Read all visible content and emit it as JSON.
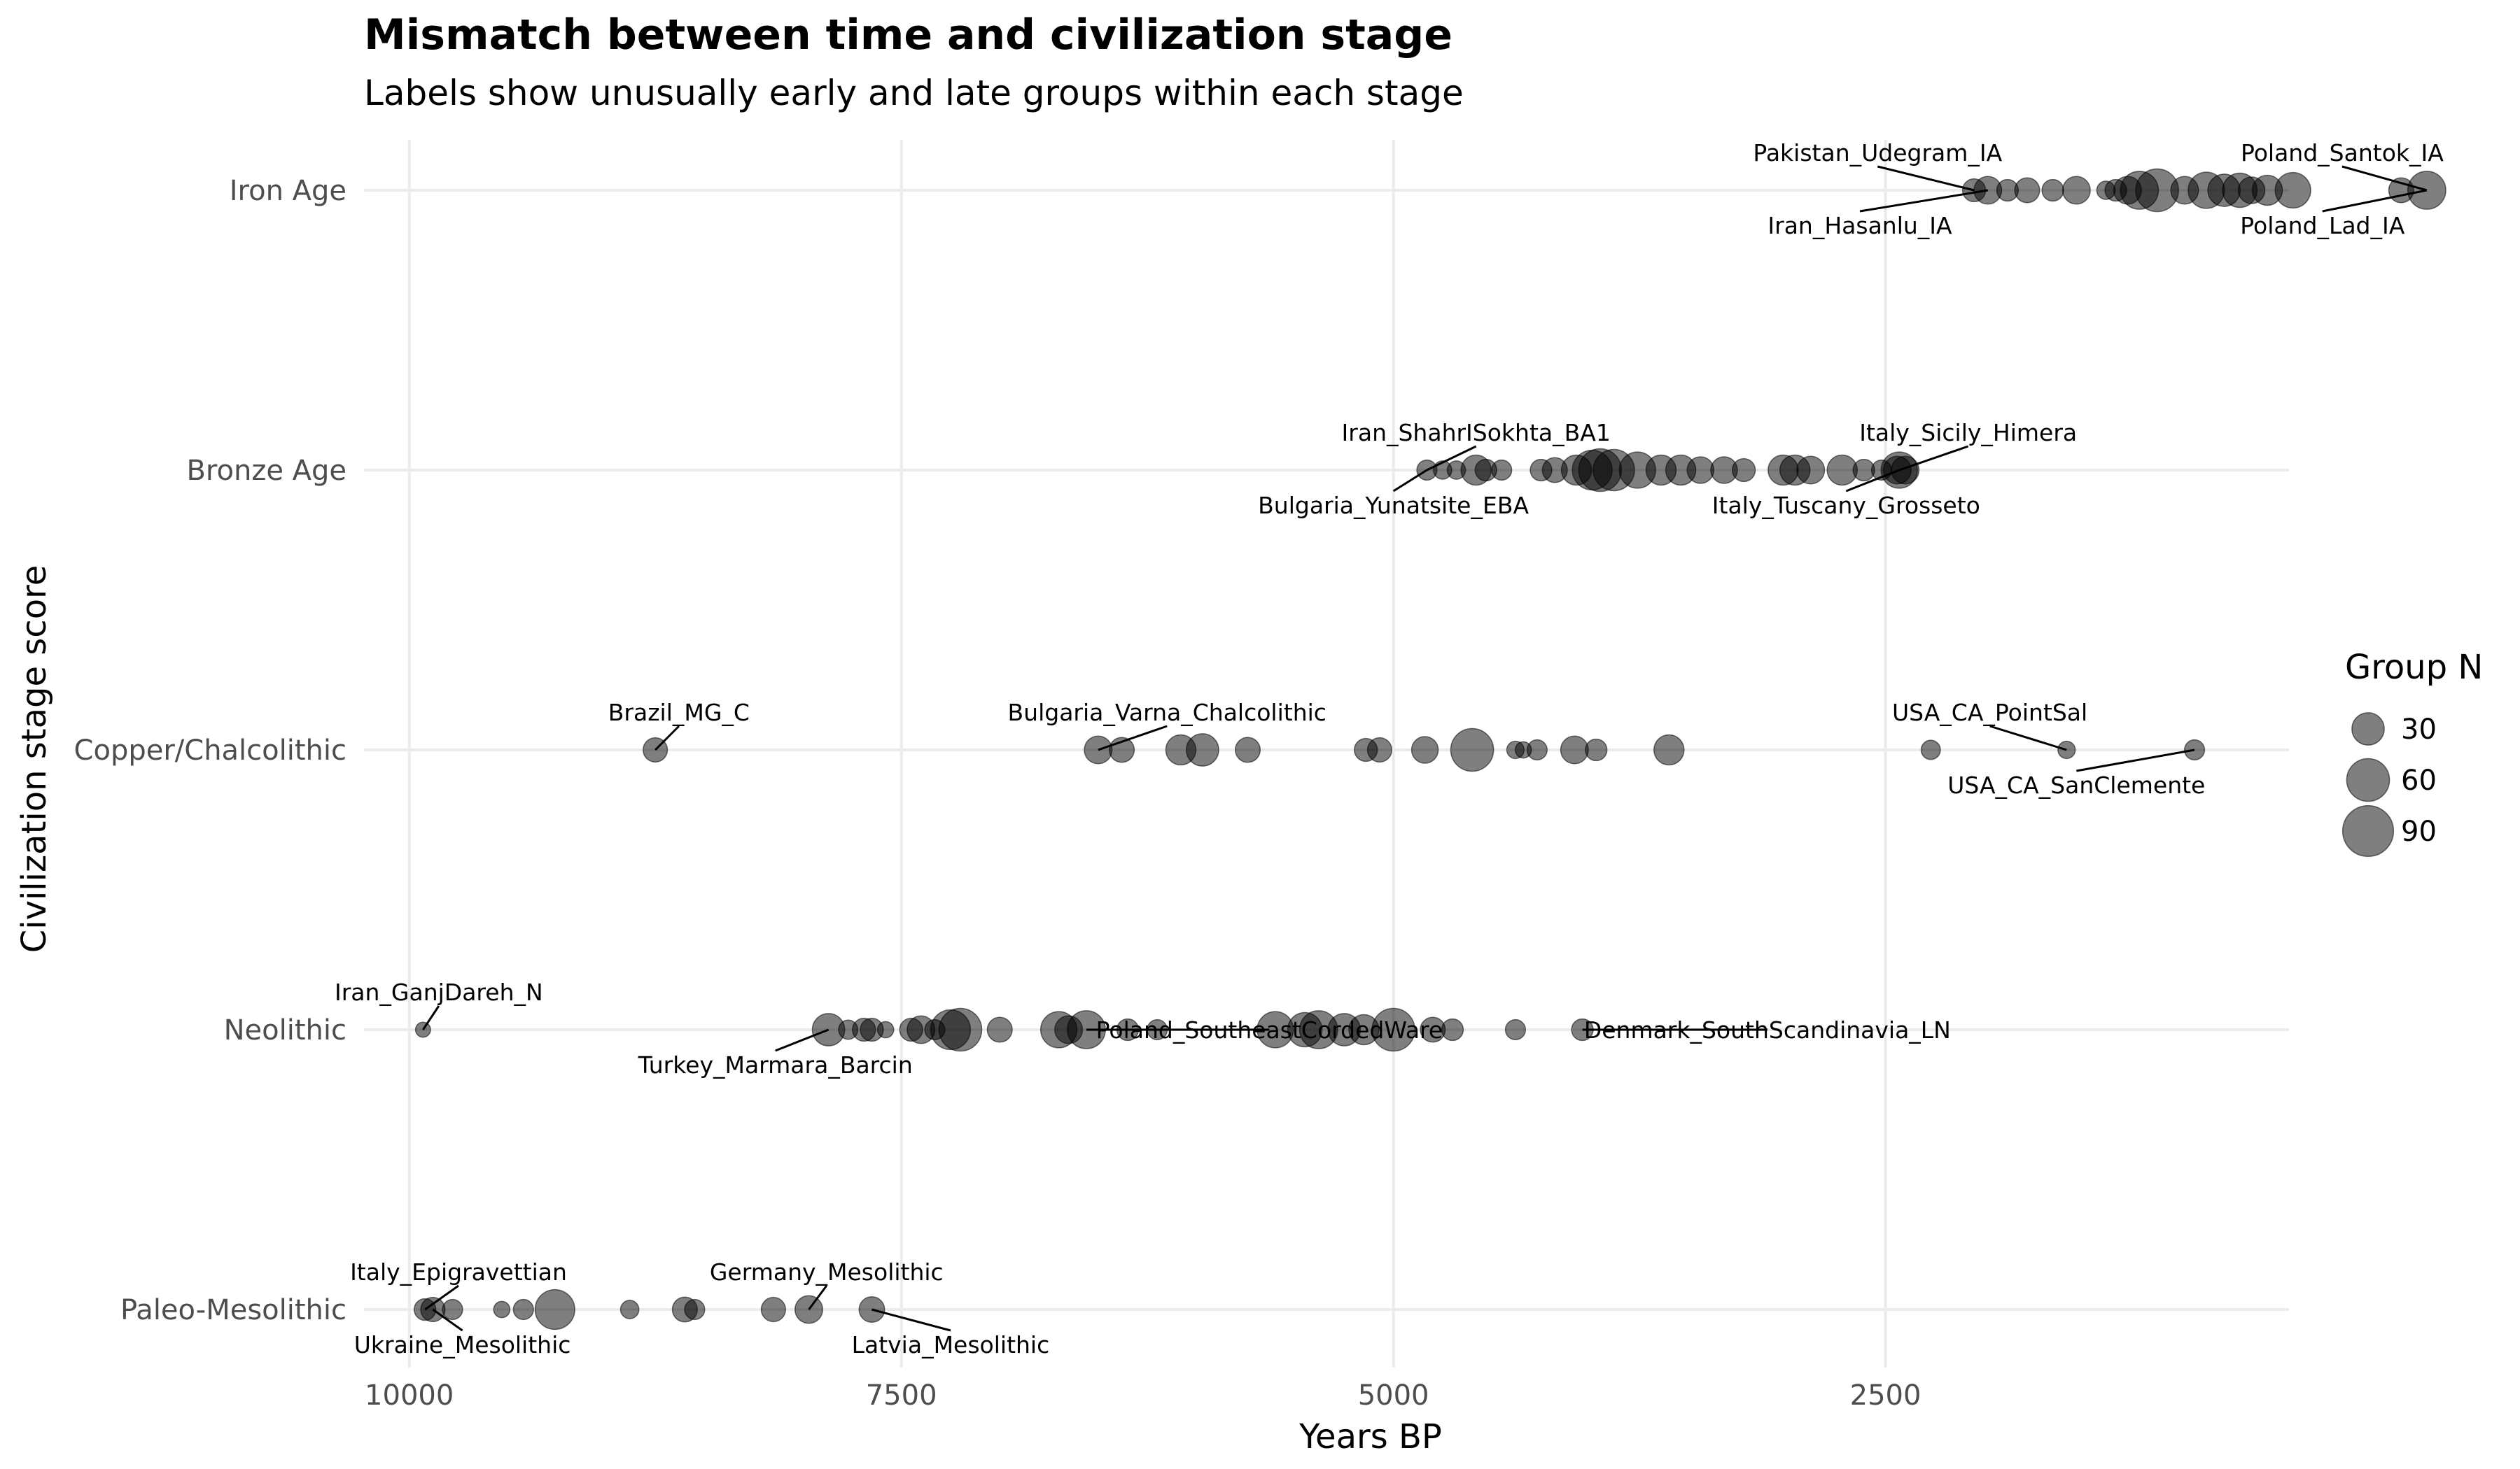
{
  "chart_data": {
    "type": "scatter",
    "title": "Mismatch between time and civilization stage",
    "subtitle": "Labels show unusually early and late groups within each stage",
    "xlabel": "Years BP",
    "ylabel": "Civilization stage score",
    "xlim": [
      10230,
      450
    ],
    "x_reversed": true,
    "x_ticks": [
      {
        "value": 10000,
        "label": "10000"
      },
      {
        "value": 7500,
        "label": "7500"
      },
      {
        "value": 5000,
        "label": "5000"
      },
      {
        "value": 2500,
        "label": "2500"
      }
    ],
    "y_levels": [
      {
        "value": 1,
        "label": "Paleo-Mesolithic"
      },
      {
        "value": 2,
        "label": "Neolithic"
      },
      {
        "value": 3,
        "label": "Copper/Chalcolithic"
      },
      {
        "value": 4,
        "label": "Bronze Age"
      },
      {
        "value": 5,
        "label": "Iron Age"
      }
    ],
    "size_legend": {
      "title": "Group N",
      "values": [
        30,
        60,
        90
      ]
    },
    "points": [
      {
        "x": 9920,
        "y": 1,
        "n": 10
      },
      {
        "x": 9880,
        "y": 1,
        "n": 14
      },
      {
        "x": 9780,
        "y": 1,
        "n": 8
      },
      {
        "x": 9530,
        "y": 1,
        "n": 4
      },
      {
        "x": 9420,
        "y": 1,
        "n": 8
      },
      {
        "x": 9260,
        "y": 1,
        "n": 50
      },
      {
        "x": 8880,
        "y": 1,
        "n": 6
      },
      {
        "x": 8600,
        "y": 1,
        "n": 15
      },
      {
        "x": 8550,
        "y": 1,
        "n": 8
      },
      {
        "x": 8150,
        "y": 1,
        "n": 14
      },
      {
        "x": 7970,
        "y": 1,
        "n": 20
      },
      {
        "x": 7650,
        "y": 1,
        "n": 16
      },
      {
        "x": 9930,
        "y": 2,
        "n": 3
      },
      {
        "x": 7870,
        "y": 2,
        "n": 30
      },
      {
        "x": 7770,
        "y": 2,
        "n": 7
      },
      {
        "x": 7690,
        "y": 2,
        "n": 12
      },
      {
        "x": 7650,
        "y": 2,
        "n": 12
      },
      {
        "x": 7580,
        "y": 2,
        "n": 4
      },
      {
        "x": 7450,
        "y": 2,
        "n": 12
      },
      {
        "x": 7400,
        "y": 2,
        "n": 20
      },
      {
        "x": 7330,
        "y": 2,
        "n": 8
      },
      {
        "x": 7250,
        "y": 2,
        "n": 50
      },
      {
        "x": 7200,
        "y": 2,
        "n": 60
      },
      {
        "x": 7000,
        "y": 2,
        "n": 15
      },
      {
        "x": 6700,
        "y": 2,
        "n": 40
      },
      {
        "x": 6650,
        "y": 2,
        "n": 20
      },
      {
        "x": 6560,
        "y": 2,
        "n": 45
      },
      {
        "x": 6350,
        "y": 2,
        "n": 10
      },
      {
        "x": 6200,
        "y": 2,
        "n": 8
      },
      {
        "x": 5600,
        "y": 2,
        "n": 40
      },
      {
        "x": 5450,
        "y": 2,
        "n": 35
      },
      {
        "x": 5380,
        "y": 2,
        "n": 45
      },
      {
        "x": 5250,
        "y": 2,
        "n": 30
      },
      {
        "x": 5150,
        "y": 2,
        "n": 25
      },
      {
        "x": 5000,
        "y": 2,
        "n": 60
      },
      {
        "x": 4800,
        "y": 2,
        "n": 15
      },
      {
        "x": 4700,
        "y": 2,
        "n": 10
      },
      {
        "x": 4380,
        "y": 2,
        "n": 8
      },
      {
        "x": 4040,
        "y": 2,
        "n": 10
      },
      {
        "x": 8750,
        "y": 3,
        "n": 14
      },
      {
        "x": 6500,
        "y": 3,
        "n": 20
      },
      {
        "x": 6380,
        "y": 3,
        "n": 15
      },
      {
        "x": 6080,
        "y": 3,
        "n": 25
      },
      {
        "x": 5970,
        "y": 3,
        "n": 30
      },
      {
        "x": 5740,
        "y": 3,
        "n": 15
      },
      {
        "x": 5140,
        "y": 3,
        "n": 12
      },
      {
        "x": 5070,
        "y": 3,
        "n": 14
      },
      {
        "x": 4840,
        "y": 3,
        "n": 18
      },
      {
        "x": 4600,
        "y": 3,
        "n": 60
      },
      {
        "x": 4380,
        "y": 3,
        "n": 5
      },
      {
        "x": 4340,
        "y": 3,
        "n": 4
      },
      {
        "x": 4270,
        "y": 3,
        "n": 8
      },
      {
        "x": 4080,
        "y": 3,
        "n": 20
      },
      {
        "x": 3970,
        "y": 3,
        "n": 10
      },
      {
        "x": 3600,
        "y": 3,
        "n": 25
      },
      {
        "x": 2270,
        "y": 3,
        "n": 7
      },
      {
        "x": 1580,
        "y": 3,
        "n": 5
      },
      {
        "x": 930,
        "y": 3,
        "n": 8
      },
      {
        "x": 4830,
        "y": 4,
        "n": 8
      },
      {
        "x": 4750,
        "y": 4,
        "n": 6
      },
      {
        "x": 4680,
        "y": 4,
        "n": 6
      },
      {
        "x": 4580,
        "y": 4,
        "n": 25
      },
      {
        "x": 4530,
        "y": 4,
        "n": 10
      },
      {
        "x": 4450,
        "y": 4,
        "n": 8
      },
      {
        "x": 4250,
        "y": 4,
        "n": 10
      },
      {
        "x": 4180,
        "y": 4,
        "n": 15
      },
      {
        "x": 4070,
        "y": 4,
        "n": 25
      },
      {
        "x": 3990,
        "y": 4,
        "n": 50
      },
      {
        "x": 3950,
        "y": 4,
        "n": 60
      },
      {
        "x": 3880,
        "y": 4,
        "n": 55
      },
      {
        "x": 3760,
        "y": 4,
        "n": 40
      },
      {
        "x": 3640,
        "y": 4,
        "n": 25
      },
      {
        "x": 3540,
        "y": 4,
        "n": 25
      },
      {
        "x": 3440,
        "y": 4,
        "n": 18
      },
      {
        "x": 3320,
        "y": 4,
        "n": 18
      },
      {
        "x": 3220,
        "y": 4,
        "n": 12
      },
      {
        "x": 3020,
        "y": 4,
        "n": 25
      },
      {
        "x": 2960,
        "y": 4,
        "n": 25
      },
      {
        "x": 2880,
        "y": 4,
        "n": 20
      },
      {
        "x": 2720,
        "y": 4,
        "n": 25
      },
      {
        "x": 2610,
        "y": 4,
        "n": 10
      },
      {
        "x": 2520,
        "y": 4,
        "n": 8
      },
      {
        "x": 2440,
        "y": 4,
        "n": 20
      },
      {
        "x": 2400,
        "y": 4,
        "n": 20
      },
      {
        "x": 2430,
        "y": 4,
        "n": 40
      },
      {
        "x": 2050,
        "y": 5,
        "n": 12
      },
      {
        "x": 1980,
        "y": 5,
        "n": 20
      },
      {
        "x": 1880,
        "y": 5,
        "n": 10
      },
      {
        "x": 1780,
        "y": 5,
        "n": 15
      },
      {
        "x": 1650,
        "y": 5,
        "n": 10
      },
      {
        "x": 1530,
        "y": 5,
        "n": 20
      },
      {
        "x": 1380,
        "y": 5,
        "n": 6
      },
      {
        "x": 1330,
        "y": 5,
        "n": 10
      },
      {
        "x": 1270,
        "y": 5,
        "n": 20
      },
      {
        "x": 1210,
        "y": 5,
        "n": 45
      },
      {
        "x": 1120,
        "y": 5,
        "n": 60
      },
      {
        "x": 980,
        "y": 5,
        "n": 20
      },
      {
        "x": 870,
        "y": 5,
        "n": 40
      },
      {
        "x": 780,
        "y": 5,
        "n": 30
      },
      {
        "x": 700,
        "y": 5,
        "n": 35
      },
      {
        "x": 640,
        "y": 5,
        "n": 18
      },
      {
        "x": 560,
        "y": 5,
        "n": 25
      },
      {
        "x": 430,
        "y": 5,
        "n": 38
      },
      {
        "x": -120,
        "y": 5,
        "n": 15
      },
      {
        "x": -250,
        "y": 5,
        "n": 45
      }
    ],
    "labels": [
      {
        "text": "Italy_Epigravettian",
        "x": 9920,
        "y": 1,
        "lx": 9750,
        "ly": 1.08
      },
      {
        "text": "Ukraine_Mesolithic",
        "x": 9880,
        "y": 1,
        "lx": 9730,
        "ly": 0.92
      },
      {
        "text": "Germany_Mesolithic",
        "x": 7970,
        "y": 1,
        "lx": 7880,
        "ly": 1.08
      },
      {
        "text": "Latvia_Mesolithic",
        "x": 7650,
        "y": 1,
        "lx": 7250,
        "ly": 0.92
      },
      {
        "text": "Iran_GanjDareh_N",
        "x": 9930,
        "y": 2,
        "lx": 9850,
        "ly": 2.08
      },
      {
        "text": "Turkey_Marmara_Barcin",
        "x": 7870,
        "y": 2,
        "lx": 8140,
        "ly": 1.92
      },
      {
        "text": "Poland_SoutheastCordedWare",
        "x": 6560,
        "y": 2,
        "lx": 5630,
        "ly": 2.0
      },
      {
        "text": "Denmark_SouthScandinavia_LN",
        "x": 4040,
        "y": 2,
        "lx": 3100,
        "ly": 2.0
      },
      {
        "text": "Brazil_MG_C",
        "x": 8750,
        "y": 3,
        "lx": 8630,
        "ly": 3.08
      },
      {
        "text": "Bulgaria_Varna_Chalcolithic",
        "x": 6500,
        "y": 3,
        "lx": 6150,
        "ly": 3.08
      },
      {
        "text": "USA_CA_PointSal",
        "x": 1580,
        "y": 3,
        "lx": 1970,
        "ly": 3.08
      },
      {
        "text": "USA_CA_SanClemente",
        "x": 930,
        "y": 3,
        "lx": 1530,
        "ly": 2.92
      },
      {
        "text": "Iran_ShahrISokhta_BA1",
        "x": 4830,
        "y": 4,
        "lx": 4580,
        "ly": 4.08
      },
      {
        "text": "Bulgaria_Yunatsite_EBA",
        "x": 4830,
        "y": 4,
        "lx": 5000,
        "ly": 3.92
      },
      {
        "text": "Italy_Sicily_Himera",
        "x": 2430,
        "y": 4,
        "lx": 2080,
        "ly": 4.08
      },
      {
        "text": "Italy_Tuscany_Grosseto",
        "x": 2430,
        "y": 4,
        "lx": 2700,
        "ly": 3.92
      },
      {
        "text": "Pakistan_Udegram_IA",
        "x": 2050,
        "y": 5,
        "lx": 2540,
        "ly": 5.08
      },
      {
        "text": "Iran_Hasanlu_IA",
        "x": 1980,
        "y": 5,
        "lx": 2630,
        "ly": 4.92
      },
      {
        "text": "Poland_Santok_IA",
        "x": -250,
        "y": 5,
        "lx": 180,
        "ly": 5.08
      },
      {
        "text": "Poland_Lad_IA",
        "x": -250,
        "y": 5,
        "lx": 280,
        "ly": 4.92
      }
    ]
  }
}
